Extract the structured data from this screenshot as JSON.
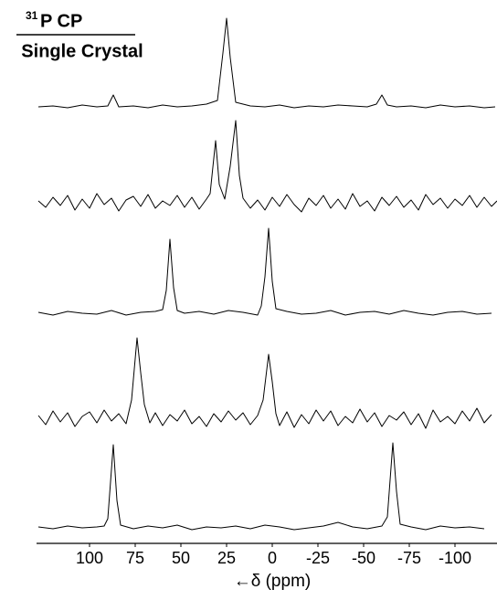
{
  "chart_data": {
    "type": "line",
    "title_superscript": "31",
    "title": "P CP",
    "subtitle": "Single Crystal",
    "x_label": "←δ (ppm)",
    "xlim": [
      129,
      -123
    ],
    "xticks": [
      100,
      75,
      50,
      25,
      0,
      -25,
      -50,
      -75,
      -100
    ],
    "ylim": [
      -15,
      100
    ],
    "series": [
      {
        "color": "#000000",
        "x": [
          128,
          120,
          112,
          104,
          96,
          90,
          87,
          84,
          76,
          68,
          60,
          52,
          44,
          36,
          30,
          27,
          25,
          23,
          20,
          12,
          4,
          -4,
          -12,
          -20,
          -28,
          -36,
          -44,
          -52,
          -57,
          -60,
          -63,
          -68,
          -76,
          -84,
          -92,
          -100,
          -108,
          -116,
          -122
        ],
        "values": [
          1,
          2,
          0,
          3,
          1,
          2,
          14,
          1,
          2,
          0,
          3,
          1,
          2,
          4,
          8,
          60,
          98,
          55,
          6,
          2,
          1,
          3,
          0,
          2,
          1,
          3,
          2,
          1,
          4,
          14,
          3,
          1,
          2,
          0,
          3,
          1,
          2,
          0,
          1
        ]
      },
      {
        "color": "#000000",
        "x": [
          128,
          124,
          120,
          116,
          112,
          108,
          104,
          100,
          96,
          92,
          88,
          84,
          80,
          76,
          72,
          68,
          64,
          60,
          56,
          52,
          48,
          44,
          40,
          36,
          34,
          31,
          29,
          26,
          23,
          20,
          18,
          16,
          12,
          8,
          4,
          0,
          -4,
          -8,
          -12,
          -16,
          -20,
          -24,
          -28,
          -32,
          -36,
          -40,
          -44,
          -48,
          -52,
          -56,
          -60,
          -64,
          -68,
          -72,
          -76,
          -80,
          -84,
          -88,
          -92,
          -96,
          -100,
          -104,
          -108,
          -112,
          -116,
          -120,
          -123
        ],
        "values": [
          2,
          -5,
          6,
          -3,
          8,
          -8,
          4,
          -6,
          10,
          -2,
          5,
          -9,
          3,
          7,
          -4,
          9,
          -6,
          2,
          -3,
          8,
          -5,
          6,
          -7,
          4,
          10,
          68,
          20,
          4,
          40,
          90,
          30,
          5,
          -6,
          3,
          -8,
          6,
          -4,
          9,
          -2,
          -10,
          5,
          -3,
          8,
          -6,
          4,
          -7,
          10,
          -4,
          2,
          -9,
          6,
          -3,
          7,
          -5,
          3,
          -8,
          9,
          -2,
          5,
          -6,
          4,
          -3,
          8,
          -5,
          6,
          -4,
          2
        ]
      },
      {
        "color": "#000000",
        "x": [
          128,
          120,
          112,
          104,
          96,
          88,
          80,
          72,
          64,
          60,
          58,
          56,
          54,
          52,
          48,
          40,
          32,
          24,
          16,
          8,
          6,
          4,
          2,
          0,
          -2,
          -8,
          -16,
          -24,
          -32,
          -40,
          -48,
          -56,
          -64,
          -72,
          -80,
          -88,
          -96,
          -104,
          -112,
          -120
        ],
        "values": [
          1,
          -2,
          2,
          0,
          -1,
          3,
          -2,
          1,
          2,
          4,
          25,
          81,
          28,
          3,
          0,
          2,
          -1,
          3,
          1,
          -2,
          8,
          40,
          93,
          35,
          5,
          2,
          -1,
          0,
          3,
          -2,
          1,
          2,
          -1,
          3,
          0,
          -2,
          1,
          2,
          -1,
          0
        ]
      },
      {
        "color": "#000000",
        "x": [
          128,
          124,
          120,
          116,
          112,
          108,
          104,
          100,
          96,
          92,
          88,
          84,
          80,
          77,
          74,
          72,
          70,
          67,
          64,
          60,
          56,
          52,
          48,
          44,
          40,
          36,
          32,
          28,
          24,
          20,
          16,
          12,
          8,
          5,
          2,
          0,
          -2,
          -4,
          -8,
          -12,
          -16,
          -20,
          -24,
          -28,
          -32,
          -36,
          -40,
          -44,
          -48,
          -52,
          -56,
          -60,
          -64,
          -68,
          -72,
          -76,
          -80,
          -84,
          -88,
          -92,
          -96,
          -100,
          -104,
          -108,
          -112,
          -116,
          -120
        ],
        "values": [
          3,
          -7,
          8,
          -4,
          6,
          -9,
          2,
          7,
          -5,
          9,
          -3,
          5,
          -6,
          20,
          88,
          50,
          15,
          -5,
          6,
          -8,
          4,
          -3,
          9,
          -6,
          2,
          -9,
          5,
          -4,
          8,
          -2,
          6,
          -7,
          3,
          20,
          70,
          40,
          5,
          -8,
          7,
          -10,
          4,
          -6,
          9,
          -3,
          8,
          -8,
          2,
          -5,
          10,
          -4,
          6,
          -9,
          3,
          -2,
          7,
          -7,
          5,
          -11,
          9,
          -4,
          2,
          -6,
          8,
          -3,
          11,
          -5,
          4
        ]
      },
      {
        "color": "#000000",
        "x": [
          128,
          120,
          112,
          104,
          96,
          92,
          90,
          87,
          85,
          83,
          76,
          68,
          60,
          52,
          44,
          36,
          28,
          20,
          12,
          4,
          -4,
          -12,
          -20,
          -28,
          -36,
          -44,
          -52,
          -60,
          -63,
          -66,
          -68,
          -70,
          -76,
          -84,
          -92,
          -100,
          -108,
          -116
        ],
        "values": [
          1,
          -1,
          2,
          0,
          1,
          2,
          10,
          91,
          30,
          3,
          -1,
          2,
          0,
          3,
          -2,
          1,
          0,
          2,
          -1,
          3,
          1,
          -2,
          0,
          2,
          6,
          1,
          -1,
          2,
          12,
          93,
          40,
          4,
          1,
          -2,
          2,
          0,
          1,
          -1
        ]
      }
    ]
  }
}
